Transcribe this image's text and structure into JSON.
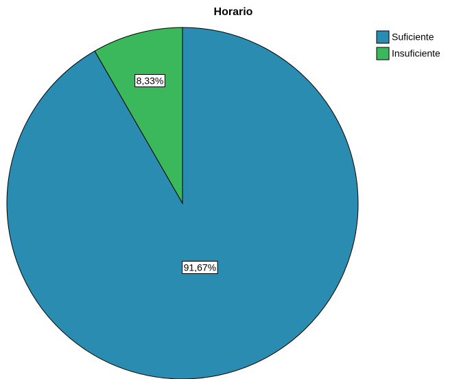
{
  "chart_data": {
    "type": "pie",
    "title": "Horario",
    "categories": [
      "Suficiente",
      "Insuficiente"
    ],
    "values": [
      91.67,
      8.33
    ],
    "value_labels": [
      "91,67%",
      "8,33%"
    ],
    "colors": [
      "#2a8cb0",
      "#3cb85c"
    ],
    "legend": "top-right"
  }
}
